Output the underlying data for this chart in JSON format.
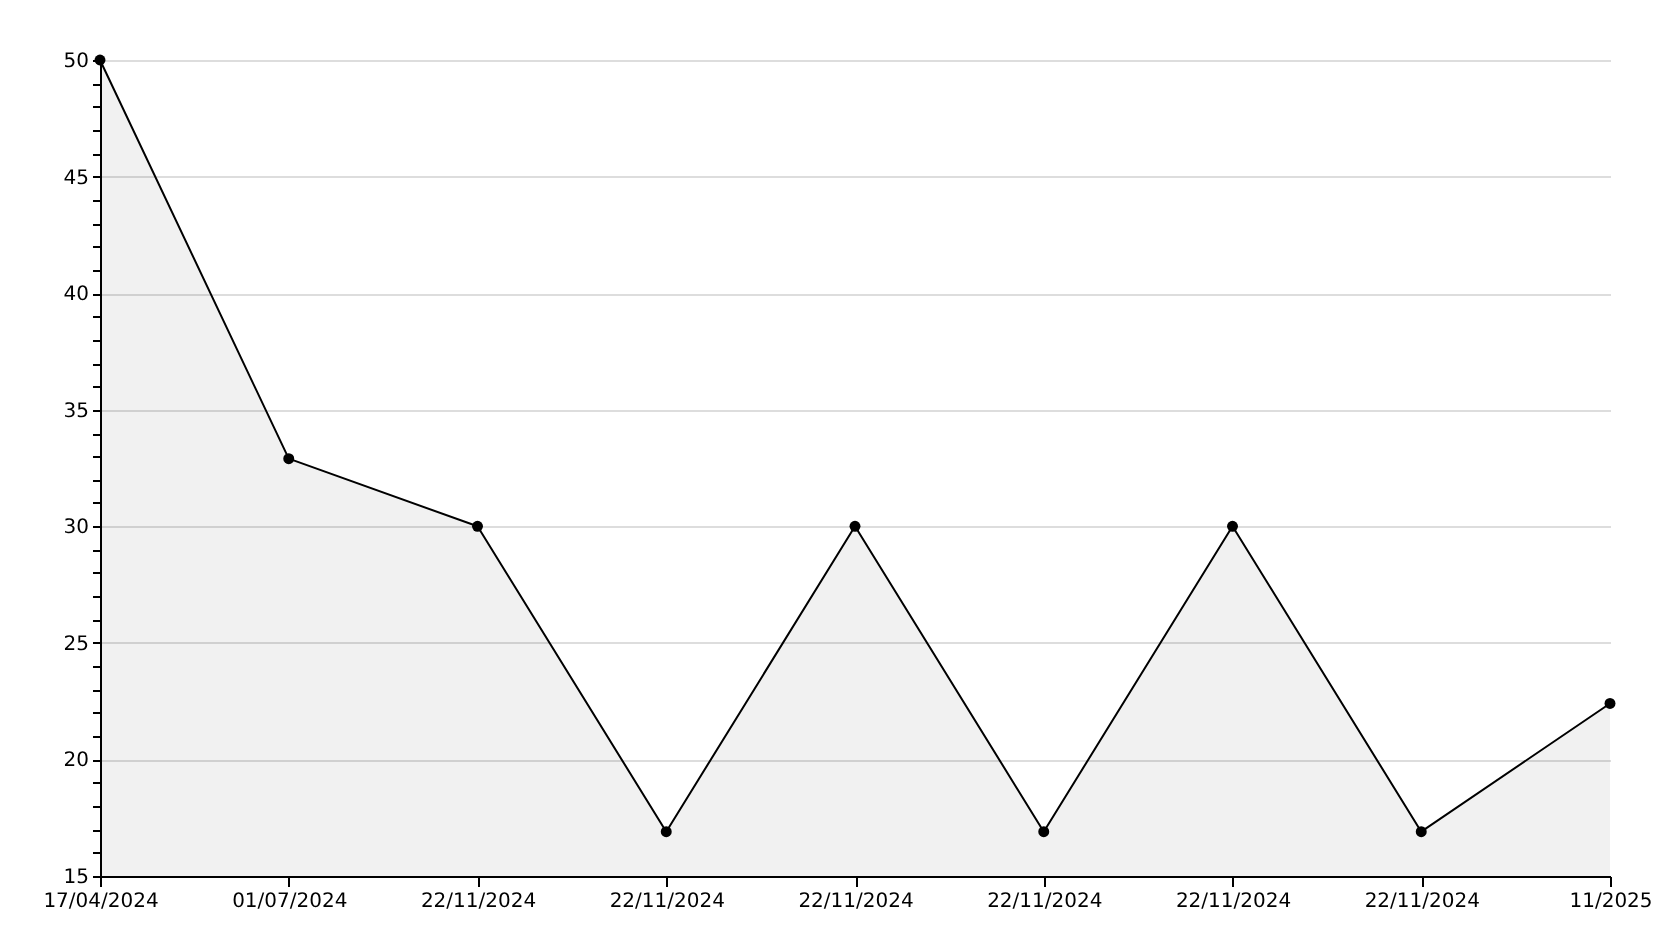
{
  "chart_data": {
    "type": "area",
    "categories": [
      "17/04/2024",
      "01/07/2024",
      "22/11/2024",
      "22/11/2024",
      "22/11/2024",
      "22/11/2024",
      "22/11/2024",
      "22/11/2024",
      "11/2025"
    ],
    "series": [
      {
        "color": "#000000",
        "values": [
          50,
          32.9,
          30,
          16.9,
          30,
          16.9,
          30,
          16.9,
          22.4
        ]
      }
    ],
    "ylim": [
      15,
      50
    ],
    "yticks": [
      15,
      {
        "value": 16,
        "label": null
      },
      {
        "value": 17,
        "label": null
      },
      {
        "value": 18,
        "label": null
      },
      {
        "value": 19,
        "label": null
      },
      20,
      {
        "value": 21,
        "label": null
      },
      {
        "value": 22,
        "label": null
      },
      {
        "value": 23,
        "label": null
      },
      {
        "value": 24,
        "label": null
      },
      25,
      {
        "value": 26,
        "label": null
      },
      {
        "value": 27,
        "label": null
      },
      {
        "value": 28,
        "label": null
      },
      {
        "value": 29,
        "label": null
      },
      30,
      {
        "value": 31,
        "label": null
      },
      {
        "value": 32,
        "label": null
      },
      {
        "value": 33,
        "label": null
      },
      {
        "value": 34,
        "label": null
      },
      35,
      {
        "value": 36,
        "label": null
      },
      {
        "value": 37,
        "label": null
      },
      {
        "value": 38,
        "label": null
      },
      {
        "value": 39,
        "label": null
      },
      40,
      {
        "value": 41,
        "label": null
      },
      {
        "value": 42,
        "label": null
      },
      {
        "value": 43,
        "label": null
      },
      {
        "value": 44,
        "label": null
      },
      45,
      {
        "value": 46,
        "label": null
      },
      {
        "value": 47,
        "label": null
      },
      {
        "value": 48,
        "label": null
      },
      {
        "value": 49,
        "label": null
      },
      50
    ],
    "grid": "y",
    "marker": "circle",
    "line_style": "solid",
    "legend": false
  }
}
